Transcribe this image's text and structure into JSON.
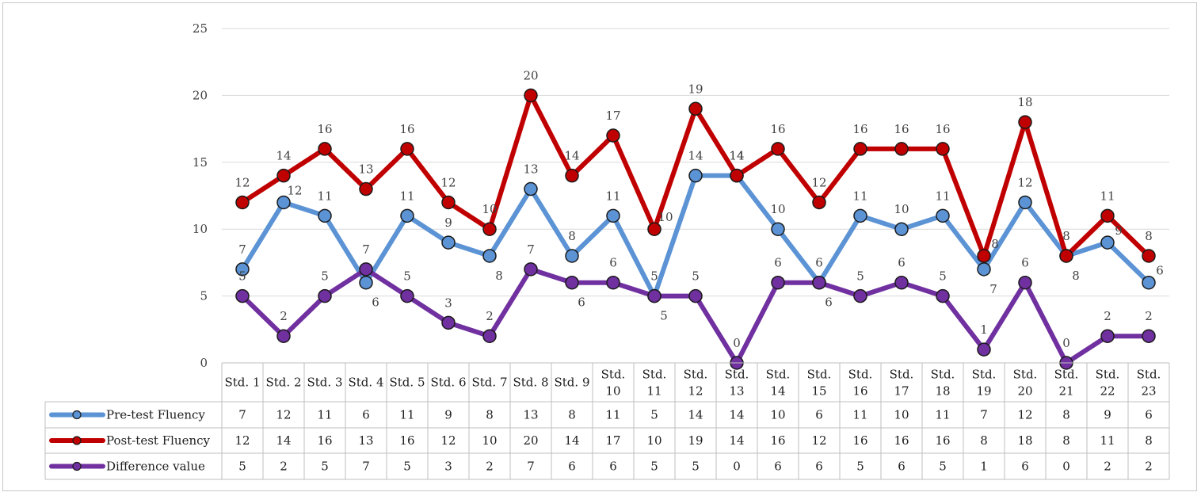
{
  "chart_data": {
    "type": "line",
    "title": "",
    "xlabel": "",
    "ylabel": "",
    "ylim": [
      0,
      25
    ],
    "yticks": [
      "0",
      "5",
      "10",
      "15",
      "20",
      "25"
    ],
    "grid": true,
    "legend_position": "data-table-left",
    "categories": [
      [
        "Std. 1"
      ],
      [
        "Std. 2"
      ],
      [
        "Std. 3"
      ],
      [
        "Std. 4"
      ],
      [
        "Std. 5"
      ],
      [
        "Std. 6"
      ],
      [
        "Std. 7"
      ],
      [
        "Std. 8"
      ],
      [
        "Std. 9"
      ],
      [
        "Std.",
        "10"
      ],
      [
        "Std.",
        "11"
      ],
      [
        "Std.",
        "12"
      ],
      [
        "Std.",
        "13"
      ],
      [
        "Std.",
        "14"
      ],
      [
        "Std.",
        "15"
      ],
      [
        "Std.",
        "16"
      ],
      [
        "Std.",
        "17"
      ],
      [
        "Std.",
        "18"
      ],
      [
        "Std.",
        "19"
      ],
      [
        "Std.",
        "20"
      ],
      [
        "Std.",
        "21"
      ],
      [
        "Std.",
        "22"
      ],
      [
        "Std.",
        "23"
      ]
    ],
    "series": [
      {
        "name": "Pre-test Fluency",
        "color": "#5b93d5",
        "values": [
          7,
          12,
          11,
          6,
          11,
          9,
          8,
          13,
          8,
          11,
          5,
          14,
          14,
          10,
          6,
          11,
          10,
          11,
          7,
          12,
          8,
          9,
          6
        ],
        "label_pos": [
          "above",
          "right",
          "above",
          "below",
          "above",
          "above",
          "below",
          "above",
          "above",
          "above",
          "above",
          "above",
          "above",
          "above",
          "above",
          "above",
          "above",
          "above",
          "below",
          "above",
          "below",
          "right",
          "right"
        ]
      },
      {
        "name": "Post-test Fluency",
        "color": "#c00000",
        "values": [
          12,
          14,
          16,
          13,
          16,
          12,
          10,
          20,
          14,
          17,
          10,
          19,
          14,
          16,
          12,
          16,
          16,
          16,
          8,
          18,
          8,
          11,
          8
        ],
        "label_pos": [
          "above",
          "above",
          "above",
          "above",
          "above",
          "above",
          "above",
          "above",
          "above",
          "above",
          "right",
          "above",
          "above",
          "above",
          "above",
          "above",
          "above",
          "above",
          "right",
          "above",
          "above",
          "above",
          "above"
        ]
      },
      {
        "name": "Difference value",
        "color": "#7030a0",
        "values": [
          5,
          2,
          5,
          7,
          5,
          3,
          2,
          7,
          6,
          6,
          5,
          5,
          0,
          6,
          6,
          5,
          6,
          5,
          1,
          6,
          0,
          2,
          2
        ],
        "label_pos": [
          "above",
          "above",
          "above",
          "above",
          "above",
          "above",
          "above",
          "above",
          "below",
          "above",
          "below",
          "above",
          "above",
          "above",
          "below",
          "above",
          "above",
          "above",
          "above",
          "above",
          "above",
          "above",
          "above"
        ]
      }
    ]
  }
}
